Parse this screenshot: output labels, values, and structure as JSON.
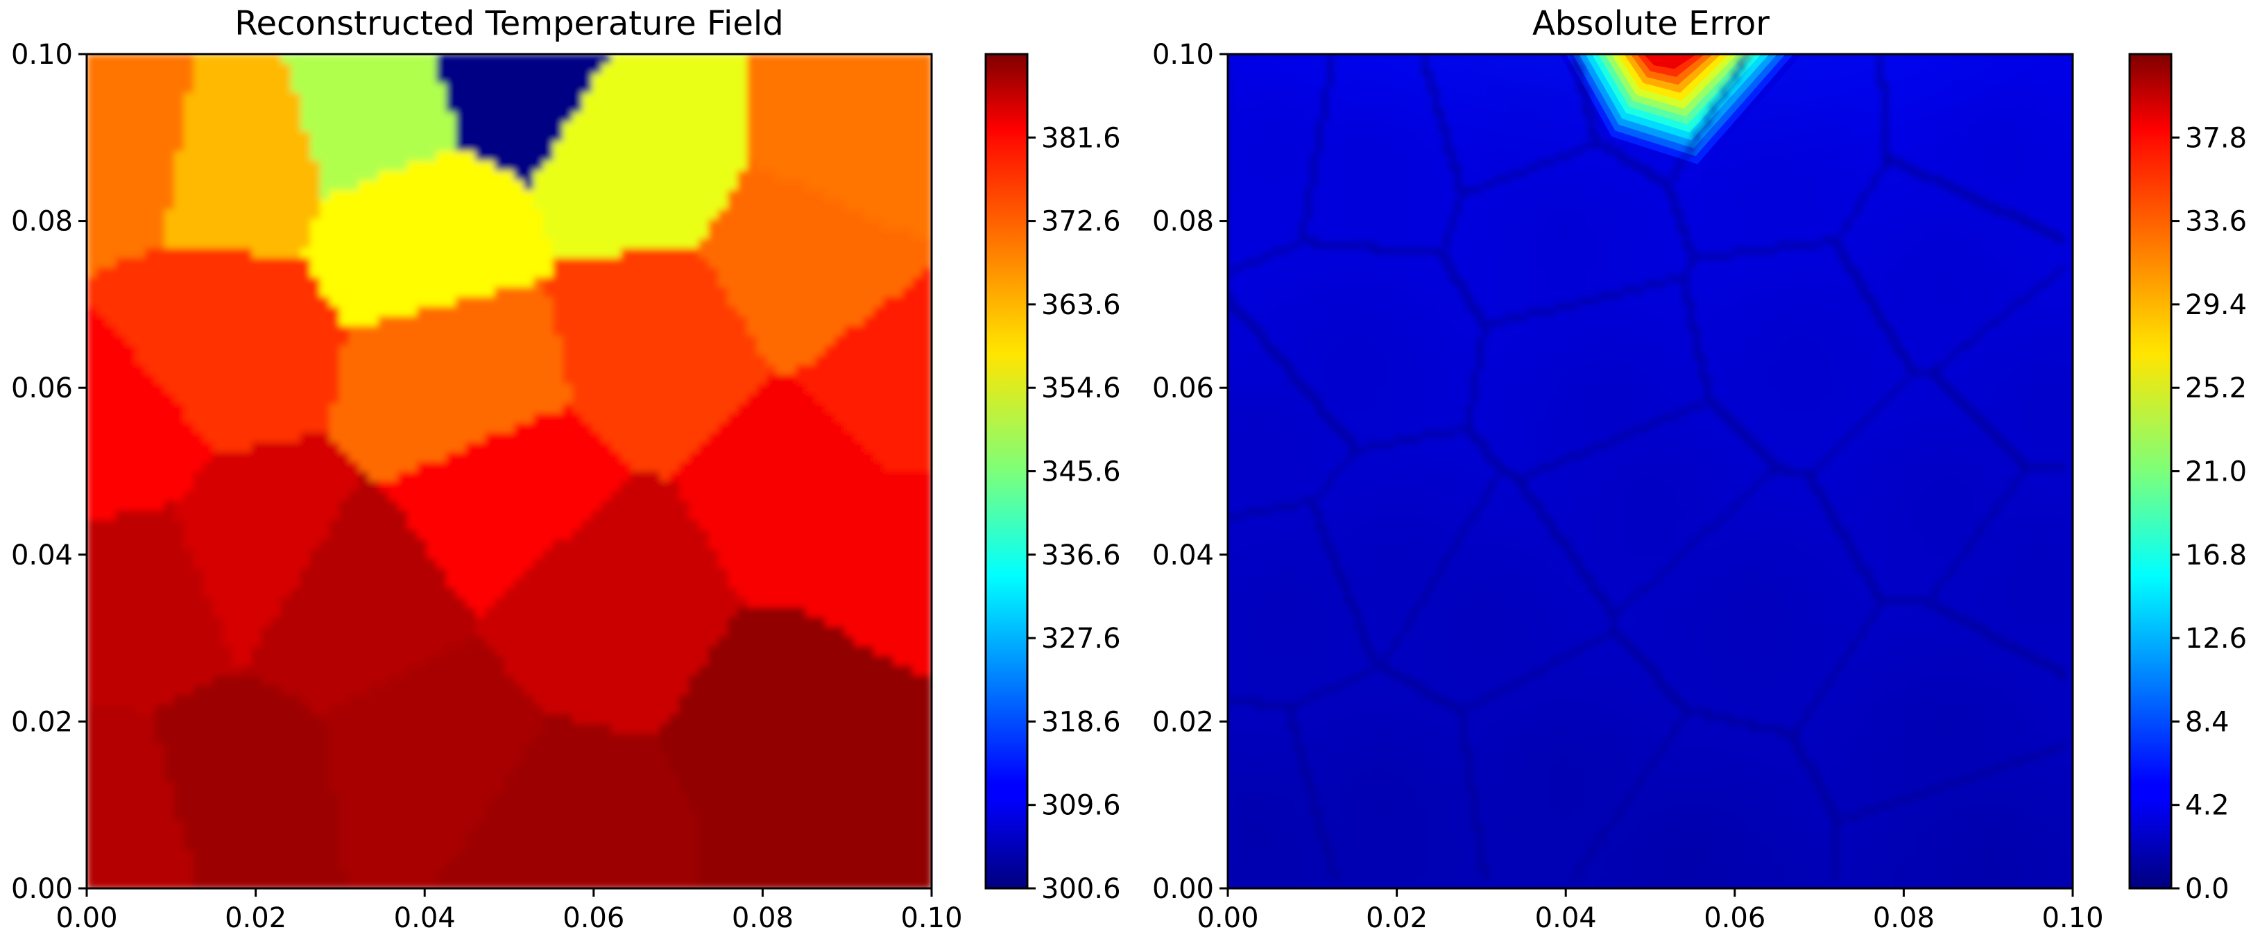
{
  "chart_data": [
    {
      "type": "heatmap",
      "title": "Reconstructed Temperature Field",
      "xlabel": "",
      "ylabel": "",
      "xlim": [
        0.0,
        0.1
      ],
      "ylim": [
        0.0,
        0.1
      ],
      "x_ticks": [
        "0.00",
        "0.02",
        "0.04",
        "0.06",
        "0.08",
        "0.10"
      ],
      "y_ticks": [
        "0.00",
        "0.02",
        "0.04",
        "0.06",
        "0.08",
        "0.10"
      ],
      "colormap": "jet",
      "colorbar": {
        "range": [
          300.6,
          390.6
        ],
        "ticks": [
          300.6,
          309.6,
          318.6,
          327.6,
          336.6,
          345.6,
          354.6,
          363.6,
          372.6,
          381.6
        ],
        "tick_labels": [
          "300.6",
          "309.6",
          "318.6",
          "327.6",
          "336.6",
          "345.6",
          "354.6",
          "363.6",
          "372.6",
          "381.6"
        ]
      },
      "cells": [
        {
          "x": 0.005,
          "y": 0.09,
          "value": 369
        },
        {
          "x": 0.017,
          "y": 0.088,
          "value": 363
        },
        {
          "x": 0.035,
          "y": 0.093,
          "value": 350
        },
        {
          "x": 0.05,
          "y": 0.097,
          "value": 301
        },
        {
          "x": 0.04,
          "y": 0.08,
          "value": 357
        },
        {
          "x": 0.065,
          "y": 0.088,
          "value": 355
        },
        {
          "x": 0.092,
          "y": 0.09,
          "value": 369
        },
        {
          "x": 0.085,
          "y": 0.075,
          "value": 370
        },
        {
          "x": 0.015,
          "y": 0.065,
          "value": 375
        },
        {
          "x": 0.045,
          "y": 0.06,
          "value": 370
        },
        {
          "x": 0.068,
          "y": 0.065,
          "value": 374
        },
        {
          "x": 0.097,
          "y": 0.06,
          "value": 377
        },
        {
          "x": 0.003,
          "y": 0.055,
          "value": 379
        },
        {
          "x": 0.02,
          "y": 0.04,
          "value": 383
        },
        {
          "x": 0.05,
          "y": 0.048,
          "value": 379
        },
        {
          "x": 0.085,
          "y": 0.048,
          "value": 380
        },
        {
          "x": 0.007,
          "y": 0.035,
          "value": 385
        },
        {
          "x": 0.03,
          "y": 0.034,
          "value": 386
        },
        {
          "x": 0.062,
          "y": 0.035,
          "value": 384
        },
        {
          "x": 0.096,
          "y": 0.04,
          "value": 380
        },
        {
          "x": 0.018,
          "y": 0.012,
          "value": 388
        },
        {
          "x": 0.04,
          "y": 0.015,
          "value": 387
        },
        {
          "x": 0.085,
          "y": 0.02,
          "value": 389
        },
        {
          "x": 0.003,
          "y": 0.008,
          "value": 386
        },
        {
          "x": 0.055,
          "y": 0.005,
          "value": 388
        },
        {
          "x": 0.09,
          "y": 0.005,
          "value": 389
        }
      ]
    },
    {
      "type": "heatmap",
      "title": "Absolute Error",
      "xlabel": "",
      "ylabel": "",
      "xlim": [
        0.0,
        0.1
      ],
      "ylim": [
        0.0,
        0.1
      ],
      "x_ticks": [
        "0.00",
        "0.02",
        "0.04",
        "0.06",
        "0.08",
        "0.10"
      ],
      "y_ticks": [
        "0.00",
        "0.02",
        "0.04",
        "0.06",
        "0.08",
        "0.10"
      ],
      "colormap": "jet",
      "colorbar": {
        "range": [
          0.0,
          42.0
        ],
        "ticks": [
          0.0,
          4.2,
          8.4,
          12.6,
          16.8,
          21.0,
          25.2,
          29.4,
          33.6,
          37.8
        ],
        "tick_labels": [
          "0.0",
          "4.2",
          "8.4",
          "12.6",
          "16.8",
          "21.0",
          "25.2",
          "29.4",
          "33.6",
          "37.8"
        ]
      },
      "hotspot": {
        "x": 0.052,
        "y": 0.1,
        "peak": 40
      }
    }
  ]
}
